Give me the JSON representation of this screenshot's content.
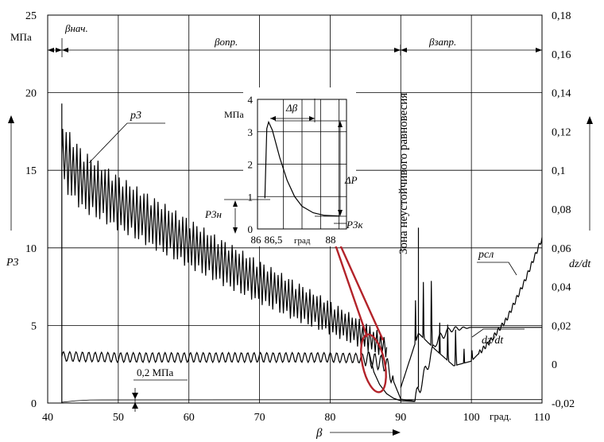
{
  "chart_data": {
    "type": "line",
    "x": {
      "label": "β",
      "unit": "град.",
      "ticks": [
        40,
        50,
        60,
        70,
        80,
        90,
        100,
        110
      ],
      "range": [
        40,
        110
      ]
    },
    "y_left": {
      "label": "P3",
      "unit": "МПа",
      "ticks": [
        0,
        5,
        10,
        15,
        20,
        25
      ],
      "range": [
        0,
        25
      ]
    },
    "y_right": {
      "label": "dz/dt",
      "ticks": [
        "-0,02",
        "0",
        "0,02",
        "0,04",
        "0,06",
        "0,08",
        "0,1",
        "0,12",
        "0,14",
        "0,16",
        "0,18"
      ],
      "tick_values": [
        -0.02,
        0,
        0.02,
        0.04,
        0.06,
        0.08,
        0.1,
        0.12,
        0.14,
        0.16,
        0.18
      ],
      "range": [
        -0.02,
        0.18
      ]
    },
    "grid": true,
    "series": [
      {
        "name": "p3",
        "axis": "left",
        "envelope": {
          "x": [
            42,
            45,
            50,
            55,
            60,
            65,
            70,
            75,
            80,
            85,
            88
          ],
          "y_mid": [
            16.0,
            14.3,
            12.9,
            11.6,
            10.3,
            9.0,
            7.8,
            6.6,
            5.5,
            4.3,
            3.6
          ],
          "amplitude": [
            2.2,
            2.0,
            1.8,
            1.7,
            1.6,
            1.5,
            1.4,
            1.3,
            1.1,
            0.9,
            0.7
          ]
        },
        "peak": {
          "x": 42,
          "y": 19.3
        }
      },
      {
        "name": "pсл",
        "axis": "left",
        "x": [
          90,
          92.5,
          95,
          97.5,
          100,
          102.5,
          105,
          107.5,
          110
        ],
        "y": [
          1.0,
          4.5,
          3.4,
          2.4,
          2.7,
          3.9,
          5.4,
          7.8,
          10.6
        ],
        "spike": {
          "x": 92.5,
          "y": 11.3
        }
      },
      {
        "name": "dz/dt",
        "axis": "right",
        "x": [
          42,
          50,
          60,
          70,
          80,
          85,
          88,
          90,
          92,
          95,
          97,
          100,
          110
        ],
        "y": [
          0.004,
          0.0035,
          0.0035,
          0.0035,
          0.0035,
          0.003,
          0.0,
          -0.018,
          -0.019,
          0.012,
          0.018,
          0.019,
          0.019
        ],
        "oscillation_amplitude": 0.0025
      }
    ],
    "annotations": {
      "beta_start": "βнач.",
      "beta_opr": "βопр.",
      "beta_zapr": "βзапр.",
      "zone_label": "Зона неустойчивого равновесия",
      "small_pressure": "0,2 МПа",
      "p3_label": "p3",
      "psl_label": "pсл",
      "dzdt_label": "dz/dt"
    },
    "inset": {
      "y_unit": "МПа",
      "y_ticks": [
        0,
        1,
        2,
        3,
        4
      ],
      "x_ticks": [
        "86",
        "86,5",
        "88"
      ],
      "x_unit": "град",
      "x": [
        86.0,
        86.05,
        86.1,
        86.2,
        86.4,
        86.6,
        86.8,
        87.0,
        87.3,
        87.6,
        88.0
      ],
      "y": [
        0.95,
        3.1,
        3.3,
        3.05,
        2.2,
        1.5,
        1.0,
        0.7,
        0.5,
        0.42,
        0.4
      ],
      "labels": {
        "delta_beta": "Δβ",
        "delta_p": "ΔP",
        "p3n": "P3н",
        "p3k": "P3к"
      }
    }
  }
}
